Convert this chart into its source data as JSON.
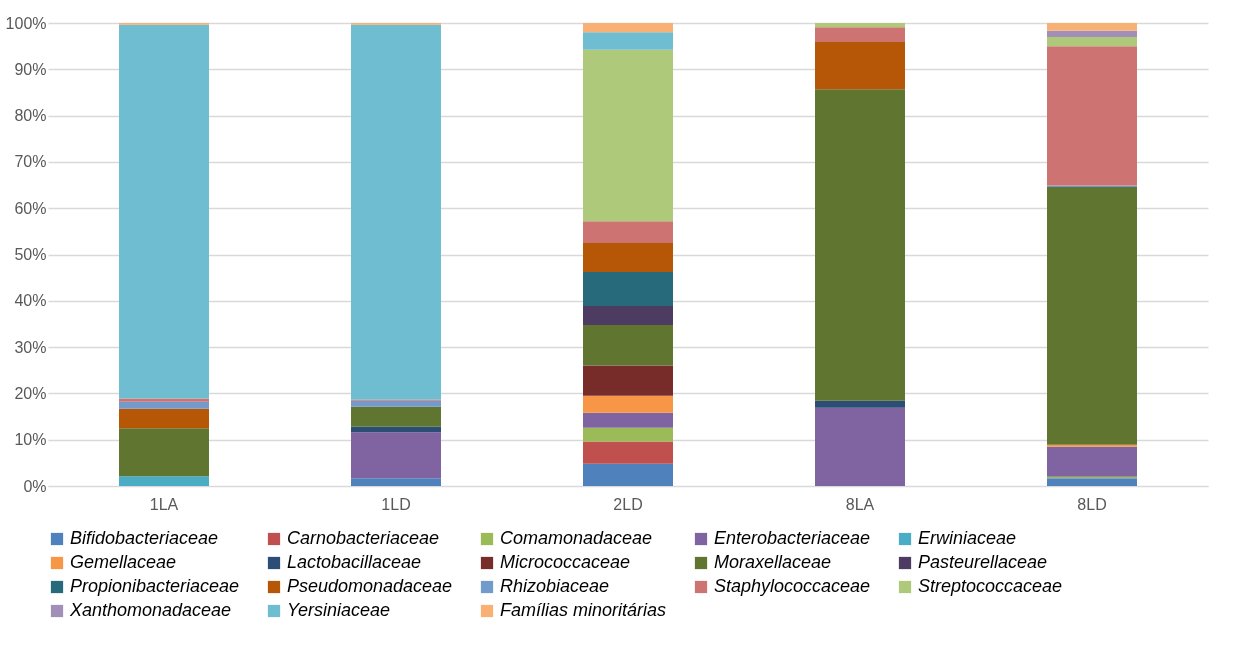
{
  "chart_data": {
    "type": "bar",
    "stacked": true,
    "categories": [
      "1LA",
      "1LD",
      "2LD",
      "8LA",
      "8LD"
    ],
    "ylim": [
      0,
      100
    ],
    "yticks": [
      {
        "value": 0,
        "label": "0%"
      },
      {
        "value": 10,
        "label": "10%"
      },
      {
        "value": 20,
        "label": "20%"
      },
      {
        "value": 30,
        "label": "30%"
      },
      {
        "value": 40,
        "label": "40%"
      },
      {
        "value": 50,
        "label": "50%"
      },
      {
        "value": 60,
        "label": "60%"
      },
      {
        "value": 70,
        "label": "70%"
      },
      {
        "value": 80,
        "label": "80%"
      },
      {
        "value": 90,
        "label": "90%"
      },
      {
        "value": 100,
        "label": "100%"
      }
    ],
    "grid": "y",
    "legend": "bottom",
    "series": [
      {
        "name": "Bifidobacteriaceae",
        "color": "#4f81bd",
        "values": [
          null,
          1.7,
          4.8,
          null,
          1.7
        ]
      },
      {
        "name": "Carnobacteriaceae",
        "color": "#c0504d",
        "values": [
          null,
          null,
          4.8,
          null,
          null
        ]
      },
      {
        "name": "Comamonadaceae",
        "color": "#9bbb59",
        "values": [
          null,
          null,
          3.0,
          null,
          0.3
        ]
      },
      {
        "name": "Enterobacteriaceae",
        "color": "#8064a2",
        "values": [
          null,
          9.9,
          3.2,
          16.9,
          6.5
        ]
      },
      {
        "name": "Erwiniaceae",
        "color": "#4bacc6",
        "values": [
          2.1,
          null,
          null,
          null,
          null
        ]
      },
      {
        "name": "Gemellaceae",
        "color": "#f79646",
        "values": [
          null,
          null,
          3.7,
          null,
          0.4
        ]
      },
      {
        "name": "Lactobacillaceae",
        "color": "#2c4d75",
        "values": [
          null,
          1.2,
          null,
          1.5,
          null
        ]
      },
      {
        "name": "Micrococcaceae",
        "color": "#772c2a",
        "values": [
          null,
          null,
          6.5,
          null,
          null
        ]
      },
      {
        "name": "Moraxellaceae",
        "color": "#5f7530",
        "values": [
          10.4,
          4.3,
          8.8,
          67.3,
          55.7
        ]
      },
      {
        "name": "Pasteurellaceae",
        "color": "#4d3b62",
        "values": [
          null,
          null,
          4.1,
          null,
          null
        ]
      },
      {
        "name": "Propionibacteriaceae",
        "color": "#276a7c",
        "values": [
          null,
          null,
          7.3,
          null,
          null
        ]
      },
      {
        "name": "Pseudomonadaceae",
        "color": "#b65708",
        "values": [
          4.2,
          null,
          6.3,
          10.2,
          null
        ]
      },
      {
        "name": "Rhizobiaceae",
        "color": "#729aca",
        "values": [
          1.5,
          1.3,
          null,
          null,
          0.3
        ]
      },
      {
        "name": "Staphylococcaceae",
        "color": "#cd7371",
        "values": [
          0.7,
          0.3,
          4.7,
          3.2,
          30.1
        ]
      },
      {
        "name": "Streptococcaceae",
        "color": "#afc97a",
        "values": [
          null,
          null,
          37.0,
          0.9,
          2.0
        ]
      },
      {
        "name": "Xanthomonadaceae",
        "color": "#a18fb8",
        "values": [
          null,
          null,
          null,
          null,
          1.3
        ]
      },
      {
        "name": "Yersiniaceae",
        "color": "#6fbdd1",
        "values": [
          80.7,
          80.9,
          3.8,
          null,
          null
        ]
      },
      {
        "name": "Famílias minoritárias",
        "color": "#f9b074",
        "values": [
          0.4,
          0.4,
          2.0,
          null,
          1.7
        ]
      }
    ]
  }
}
